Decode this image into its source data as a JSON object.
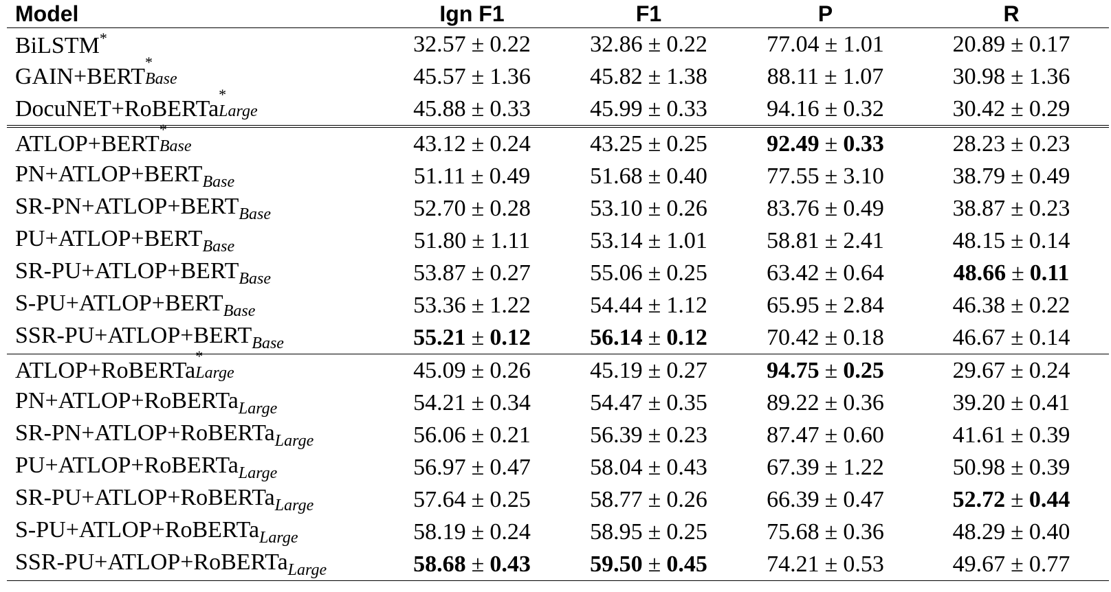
{
  "headers": [
    "Model",
    "Ign F1",
    "F1",
    "P",
    "R"
  ],
  "pm": "±",
  "rows": [
    {
      "base": "BiLSTM",
      "sup": "*",
      "sub": "",
      "cells": [
        {
          "v": "32.57",
          "e": "0.22"
        },
        {
          "v": "32.86",
          "e": "0.22"
        },
        {
          "v": "77.04",
          "e": "1.01"
        },
        {
          "v": "20.89",
          "e": "0.17"
        }
      ]
    },
    {
      "base": "GAIN+BERT",
      "sup": "*",
      "sub": "Base",
      "cells": [
        {
          "v": "45.57",
          "e": "1.36"
        },
        {
          "v": "45.82",
          "e": "1.38"
        },
        {
          "v": "88.11",
          "e": "1.07"
        },
        {
          "v": "30.98",
          "e": "1.36"
        }
      ]
    },
    {
      "base": "DocuNET+RoBERTa",
      "sup": "*",
      "sub": "Large",
      "cells": [
        {
          "v": "45.88",
          "e": "0.33"
        },
        {
          "v": "45.99",
          "e": "0.33"
        },
        {
          "v": "94.16",
          "e": "0.32"
        },
        {
          "v": "30.42",
          "e": "0.29"
        }
      ]
    },
    {
      "base": "ATLOP+BERT",
      "sup": "*",
      "sub": "Base",
      "cells": [
        {
          "v": "43.12",
          "e": "0.24"
        },
        {
          "v": "43.25",
          "e": "0.25"
        },
        {
          "v": "92.49",
          "e": "0.33",
          "bold": true
        },
        {
          "v": "28.23",
          "e": "0.23"
        }
      ]
    },
    {
      "base": "PN+ATLOP+BERT",
      "sup": "",
      "sub": "Base",
      "cells": [
        {
          "v": "51.11",
          "e": "0.49"
        },
        {
          "v": "51.68",
          "e": "0.40"
        },
        {
          "v": "77.55",
          "e": "3.10"
        },
        {
          "v": "38.79",
          "e": "0.49"
        }
      ]
    },
    {
      "base": "SR-PN+ATLOP+BERT",
      "sup": "",
      "sub": "Base",
      "cells": [
        {
          "v": "52.70",
          "e": "0.28"
        },
        {
          "v": "53.10",
          "e": "0.26"
        },
        {
          "v": "83.76",
          "e": "0.49"
        },
        {
          "v": "38.87",
          "e": "0.23"
        }
      ]
    },
    {
      "base": "PU+ATLOP+BERT",
      "sup": "",
      "sub": "Base",
      "cells": [
        {
          "v": "51.80",
          "e": "1.11"
        },
        {
          "v": "53.14",
          "e": "1.01"
        },
        {
          "v": "58.81",
          "e": "2.41"
        },
        {
          "v": "48.15",
          "e": "0.14"
        }
      ]
    },
    {
      "base": "SR-PU+ATLOP+BERT",
      "sup": "",
      "sub": "Base",
      "cells": [
        {
          "v": "53.87",
          "e": "0.27"
        },
        {
          "v": "55.06",
          "e": "0.25"
        },
        {
          "v": "63.42",
          "e": "0.64"
        },
        {
          "v": "48.66",
          "e": "0.11",
          "bold": true
        }
      ]
    },
    {
      "base": "S-PU+ATLOP+BERT",
      "sup": "",
      "sub": "Base",
      "cells": [
        {
          "v": "53.36",
          "e": "1.22"
        },
        {
          "v": "54.44",
          "e": "1.12"
        },
        {
          "v": "65.95",
          "e": "2.84"
        },
        {
          "v": "46.38",
          "e": "0.22"
        }
      ]
    },
    {
      "base": "SSR-PU+ATLOP+BERT",
      "sup": "",
      "sub": "Base",
      "cells": [
        {
          "v": "55.21",
          "e": "0.12",
          "bold": true
        },
        {
          "v": "56.14",
          "e": "0.12",
          "bold": true
        },
        {
          "v": "70.42",
          "e": "0.18"
        },
        {
          "v": "46.67",
          "e": "0.14"
        }
      ]
    },
    {
      "base": "ATLOP+RoBERTa",
      "sup": "*",
      "sub": "Large",
      "cells": [
        {
          "v": "45.09",
          "e": "0.26"
        },
        {
          "v": "45.19",
          "e": "0.27"
        },
        {
          "v": "94.75",
          "e": "0.25",
          "bold": true
        },
        {
          "v": "29.67",
          "e": "0.24"
        }
      ]
    },
    {
      "base": "PN+ATLOP+RoBERTa",
      "sup": "",
      "sub": "Large",
      "cells": [
        {
          "v": "54.21",
          "e": "0.34"
        },
        {
          "v": "54.47",
          "e": "0.35"
        },
        {
          "v": "89.22",
          "e": "0.36"
        },
        {
          "v": "39.20",
          "e": "0.41"
        }
      ]
    },
    {
      "base": "SR-PN+ATLOP+RoBERTa",
      "sup": "",
      "sub": "Large",
      "cells": [
        {
          "v": "56.06",
          "e": "0.21"
        },
        {
          "v": "56.39",
          "e": "0.23"
        },
        {
          "v": "87.47",
          "e": "0.60"
        },
        {
          "v": "41.61",
          "e": "0.39"
        }
      ]
    },
    {
      "base": "PU+ATLOP+RoBERTa",
      "sup": "",
      "sub": "Large",
      "cells": [
        {
          "v": "56.97",
          "e": "0.47"
        },
        {
          "v": "58.04",
          "e": "0.43"
        },
        {
          "v": "67.39",
          "e": "1.22"
        },
        {
          "v": "50.98",
          "e": "0.39"
        }
      ]
    },
    {
      "base": "SR-PU+ATLOP+RoBERTa",
      "sup": "",
      "sub": "Large",
      "cells": [
        {
          "v": "57.64",
          "e": "0.25"
        },
        {
          "v": "58.77",
          "e": "0.26"
        },
        {
          "v": "66.39",
          "e": "0.47"
        },
        {
          "v": "52.72",
          "e": "0.44",
          "bold": true
        }
      ]
    },
    {
      "base": "S-PU+ATLOP+RoBERTa",
      "sup": "",
      "sub": "Large",
      "cells": [
        {
          "v": "58.19",
          "e": "0.24"
        },
        {
          "v": "58.95",
          "e": "0.25"
        },
        {
          "v": "75.68",
          "e": "0.36"
        },
        {
          "v": "48.29",
          "e": "0.40"
        }
      ]
    },
    {
      "base": "SSR-PU+ATLOP+RoBERTa",
      "sup": "",
      "sub": "Large",
      "cells": [
        {
          "v": "58.68",
          "e": "0.43",
          "bold": true
        },
        {
          "v": "59.50",
          "e": "0.45",
          "bold": true
        },
        {
          "v": "74.21",
          "e": "0.53"
        },
        {
          "v": "49.67",
          "e": "0.77"
        }
      ]
    }
  ]
}
